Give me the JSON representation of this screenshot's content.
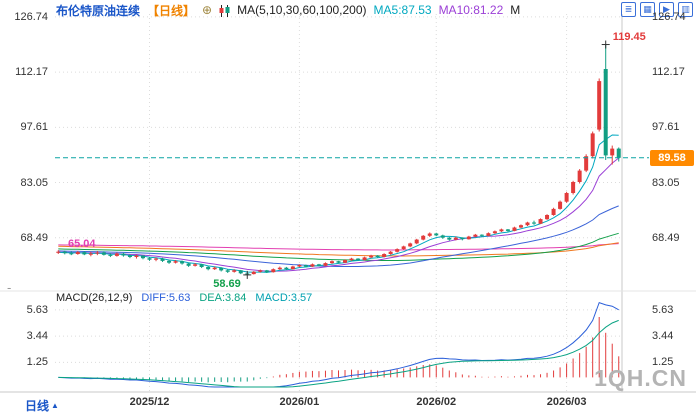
{
  "header": {
    "symbol": "布伦特原油连续",
    "period_tag": "【日线】",
    "add_icon": "⊕",
    "ma_label": "MA(5,10,30,60,100,200)",
    "ma5": "MA5:87.53",
    "ma10": "MA10:81.22",
    "ma_truncated": "M",
    "toolbar": [
      {
        "name": "layout-list-icon",
        "glyph": "≣"
      },
      {
        "name": "grid-view-icon",
        "glyph": "▦"
      },
      {
        "name": "play-icon",
        "glyph": "▶"
      },
      {
        "name": "column-view-icon",
        "glyph": "▥"
      }
    ]
  },
  "macd_legend": {
    "title": "MACD(26,12,9)",
    "diff": "DIFF:5.63",
    "dea": "DEA:3.84",
    "macd": "MACD:3.57"
  },
  "x_axis": {
    "period": "日线",
    "period_arrow": "▲"
  },
  "pane_divider": "-",
  "watermark": "1QH.CN",
  "colors": {
    "symbol": "#1a56c8",
    "period_tag": "#f08300",
    "add_icon": "#a08840",
    "legend_text": "#222222",
    "up": "#e23b3b",
    "down": "#129e82",
    "ma": {
      "5": "#00a8c0",
      "10": "#9b3fd6",
      "30": "#3c64d8",
      "60": "#13a04b",
      "100": "#f07820",
      "200": "#e23fb1"
    },
    "diff": "#2b5fd9",
    "dea": "#0aa383",
    "macd_value": "#00a0b0",
    "dashed": "#0aa3a3",
    "tag_bg": "#ff8a00",
    "tag_text": "#ffffff",
    "high_label": "#e23b3b",
    "low_label": "#13a04b",
    "ma_left_label": "#e23fb1",
    "axis_text": "#333333",
    "grid": "#dcdcdc",
    "border": "#c8c8c8",
    "toolbar": "#3a6fd8",
    "watermark": "#b4b4b4"
  },
  "chart_data": {
    "type": "candlestick",
    "title": "布伦特原油连续 日线",
    "y_axis_values": [
      126.74,
      112.17,
      97.61,
      83.05,
      68.49
    ],
    "y_range": [
      55.5,
      127.5
    ],
    "macd_axis_values": [
      5.63,
      3.44,
      1.25
    ],
    "macd_range": [
      -0.8,
      6.7
    ],
    "last_price": 89.58,
    "high_annotation": {
      "index": 84,
      "price": 119.45
    },
    "low_annotation": {
      "index": 29,
      "price": 58.69
    },
    "ma_annotation": {
      "price": 65.04
    },
    "ma_periods": [
      5,
      10,
      30,
      60,
      100,
      200
    ],
    "ma_display": {
      "ma5": 87.53,
      "ma10": 81.22
    },
    "macd": {
      "params": [
        26,
        12,
        9
      ],
      "diff": 5.63,
      "dea": 3.84,
      "macd": 3.57
    },
    "x_ticks": [
      {
        "index": 14,
        "label": "2025/12"
      },
      {
        "index": 37,
        "label": "2026/01"
      },
      {
        "index": 58,
        "label": "2026/02"
      },
      {
        "index": 78,
        "label": "2026/03"
      }
    ],
    "candles": [
      [
        64.5,
        65.2,
        64.2,
        64.8
      ],
      [
        64.8,
        65.1,
        64.1,
        64.4
      ],
      [
        64.4,
        64.9,
        63.9,
        64.2
      ],
      [
        64.2,
        65.0,
        64.0,
        64.7
      ],
      [
        64.7,
        64.9,
        63.9,
        64.1
      ],
      [
        64.0,
        64.8,
        63.6,
        64.3
      ],
      [
        64.3,
        65.0,
        63.9,
        64.6
      ],
      [
        64.6,
        64.9,
        63.8,
        64.0
      ],
      [
        64.0,
        64.4,
        63.4,
        63.7
      ],
      [
        63.7,
        64.6,
        63.5,
        64.3
      ],
      [
        64.3,
        64.5,
        63.5,
        63.8
      ],
      [
        63.8,
        64.1,
        63.1,
        63.4
      ],
      [
        63.4,
        64.0,
        63.0,
        63.8
      ],
      [
        63.8,
        63.9,
        62.8,
        63.1
      ],
      [
        63.1,
        63.4,
        62.4,
        62.7
      ],
      [
        62.7,
        63.3,
        62.3,
        63.0
      ],
      [
        63.0,
        63.2,
        62.1,
        62.4
      ],
      [
        62.4,
        62.7,
        61.6,
        61.9
      ],
      [
        61.9,
        62.6,
        61.7,
        62.3
      ],
      [
        62.3,
        62.5,
        61.4,
        61.7
      ],
      [
        61.7,
        61.9,
        60.8,
        61.1
      ],
      [
        61.1,
        61.8,
        60.9,
        61.5
      ],
      [
        61.5,
        61.6,
        60.5,
        60.8
      ],
      [
        60.8,
        61.0,
        59.9,
        60.2
      ],
      [
        60.2,
        60.9,
        60.0,
        60.6
      ],
      [
        60.6,
        60.7,
        59.6,
        59.9
      ],
      [
        59.9,
        60.2,
        59.2,
        59.5
      ],
      [
        59.5,
        60.2,
        59.3,
        59.9
      ],
      [
        59.9,
        60.0,
        58.9,
        59.1
      ],
      [
        59.1,
        59.3,
        58.69,
        58.9
      ],
      [
        58.9,
        59.7,
        58.8,
        59.5
      ],
      [
        59.5,
        60.1,
        59.3,
        59.9
      ],
      [
        59.9,
        60.0,
        59.2,
        59.4
      ],
      [
        59.4,
        60.4,
        59.3,
        60.2
      ],
      [
        60.2,
        60.9,
        60.0,
        60.6
      ],
      [
        60.6,
        60.8,
        60.0,
        60.2
      ],
      [
        60.2,
        61.1,
        60.1,
        60.9
      ],
      [
        60.9,
        61.5,
        60.7,
        61.3
      ],
      [
        61.3,
        61.4,
        60.7,
        60.9
      ],
      [
        60.9,
        61.7,
        60.8,
        61.5
      ],
      [
        61.5,
        61.6,
        60.9,
        61.1
      ],
      [
        61.1,
        62.0,
        61.0,
        61.8
      ],
      [
        61.8,
        62.5,
        61.6,
        62.3
      ],
      [
        62.3,
        62.4,
        61.7,
        61.9
      ],
      [
        61.9,
        62.8,
        61.8,
        62.6
      ],
      [
        62.6,
        63.2,
        62.4,
        63.0
      ],
      [
        63.0,
        63.1,
        62.4,
        62.6
      ],
      [
        62.6,
        63.5,
        62.5,
        63.3
      ],
      [
        63.3,
        64.0,
        63.1,
        63.8
      ],
      [
        63.8,
        63.9,
        63.2,
        63.4
      ],
      [
        63.4,
        64.4,
        63.3,
        64.2
      ],
      [
        64.2,
        65.0,
        64.0,
        64.8
      ],
      [
        64.8,
        65.7,
        64.6,
        65.5
      ],
      [
        65.5,
        66.4,
        65.3,
        66.2
      ],
      [
        66.2,
        67.2,
        66.0,
        67.0
      ],
      [
        67.0,
        68.2,
        66.8,
        68.0
      ],
      [
        68.0,
        69.2,
        67.8,
        69.0
      ],
      [
        69.0,
        69.9,
        68.7,
        69.6
      ],
      [
        69.6,
        69.8,
        68.9,
        69.1
      ],
      [
        69.1,
        69.3,
        68.2,
        68.5
      ],
      [
        68.5,
        68.7,
        67.7,
        68.0
      ],
      [
        68.0,
        68.8,
        67.8,
        68.5
      ],
      [
        68.5,
        68.6,
        67.8,
        68.1
      ],
      [
        68.1,
        69.0,
        68.0,
        68.8
      ],
      [
        68.8,
        69.5,
        68.6,
        69.3
      ],
      [
        69.3,
        69.4,
        68.7,
        69.0
      ],
      [
        69.0,
        69.9,
        68.9,
        69.7
      ],
      [
        69.7,
        70.4,
        69.5,
        70.2
      ],
      [
        70.2,
        70.9,
        70.0,
        70.7
      ],
      [
        70.7,
        70.8,
        70.0,
        70.3
      ],
      [
        70.3,
        71.4,
        70.2,
        71.2
      ],
      [
        71.2,
        72.0,
        71.0,
        71.8
      ],
      [
        71.8,
        72.7,
        71.6,
        72.5
      ],
      [
        72.5,
        73.0,
        71.9,
        72.2
      ],
      [
        72.2,
        73.6,
        72.1,
        73.4
      ],
      [
        73.4,
        74.7,
        73.2,
        74.5
      ],
      [
        74.5,
        76.4,
        74.3,
        76.1
      ],
      [
        76.1,
        78.3,
        75.9,
        78.0
      ],
      [
        78.0,
        80.6,
        77.7,
        80.3
      ],
      [
        80.3,
        83.5,
        79.9,
        83.2
      ],
      [
        83.2,
        86.6,
        82.8,
        86.2
      ],
      [
        86.2,
        90.5,
        85.8,
        90.0
      ],
      [
        90.0,
        96.5,
        89.4,
        96.0
      ],
      [
        97.0,
        110.5,
        96.5,
        109.8
      ],
      [
        113.0,
        119.45,
        89.0,
        90.2
      ],
      [
        90.2,
        92.8,
        87.8,
        92.0
      ],
      [
        92.0,
        92.3,
        88.6,
        89.58
      ]
    ]
  }
}
